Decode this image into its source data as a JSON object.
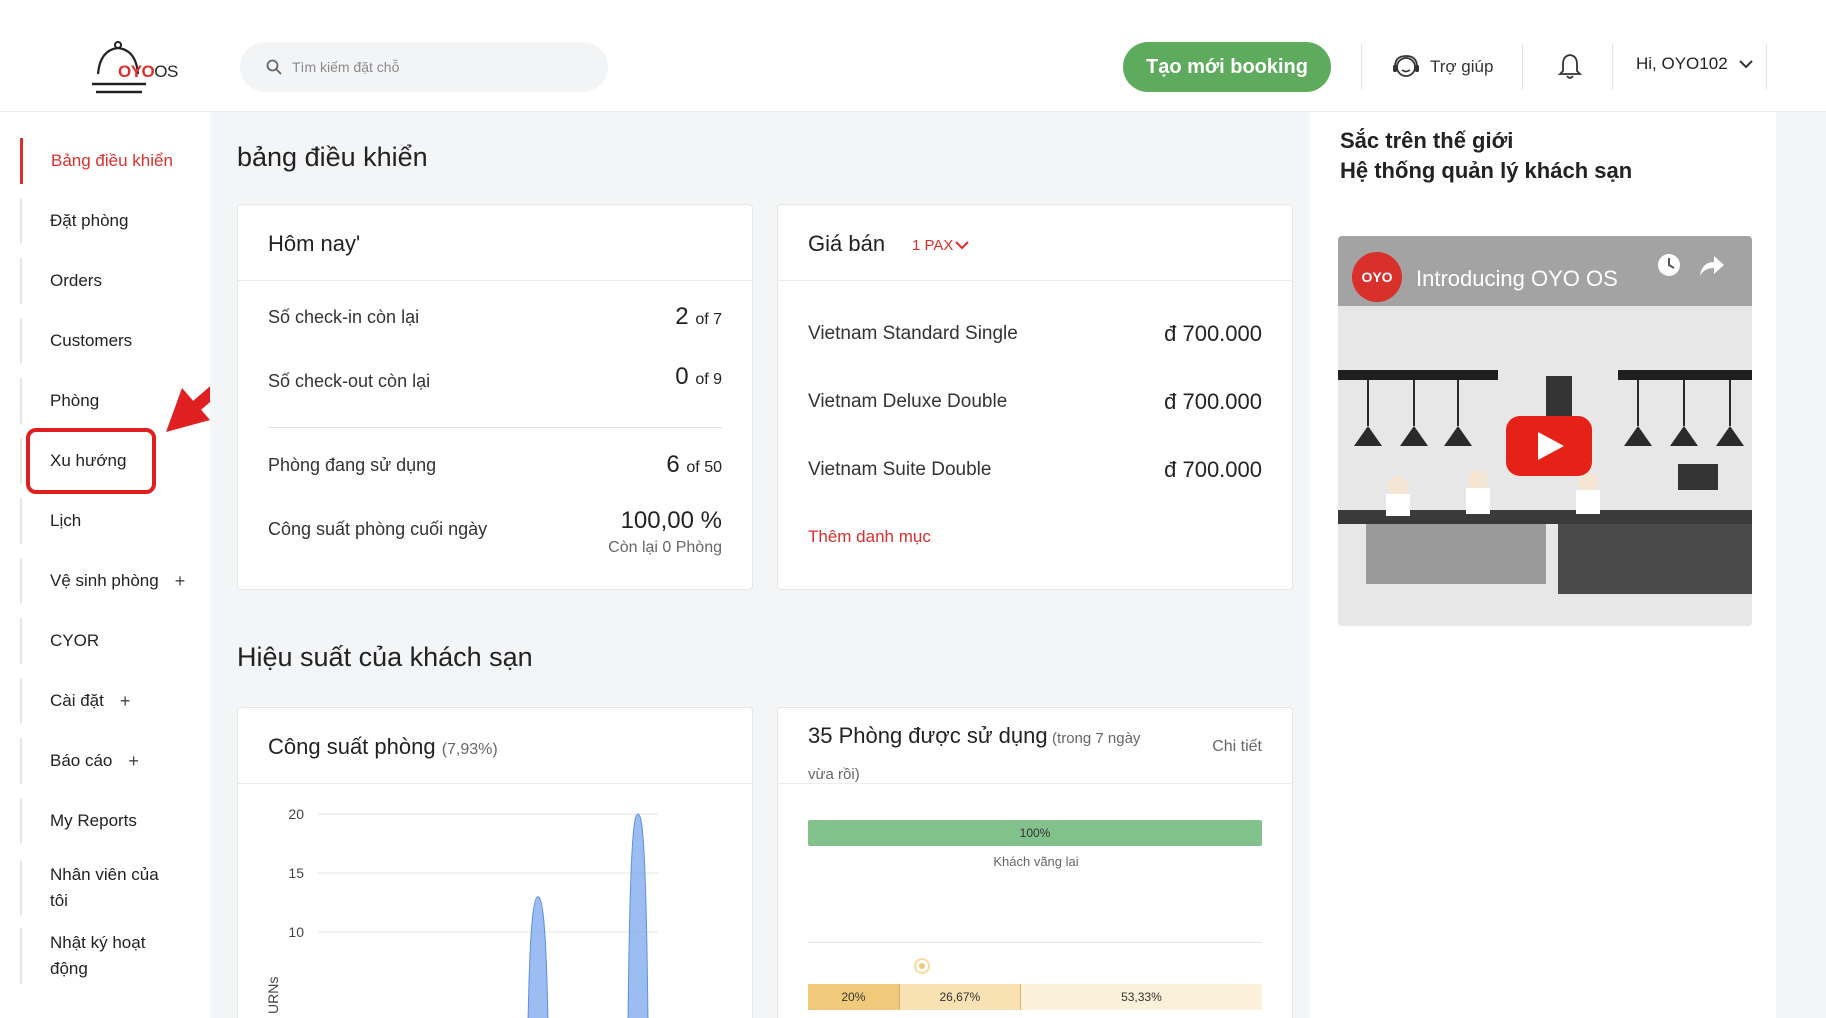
{
  "header": {
    "logo_brand": "OYO",
    "logo_suffix": "OS",
    "search_placeholder": "Tìm kiếm đặt chỗ",
    "new_booking_label": "Tạo mới booking",
    "help_label": "Trợ giúp",
    "user_label": "Hi, OYO102"
  },
  "sidebar": {
    "items": [
      {
        "label": "Bảng điều khiển"
      },
      {
        "label": "Đặt phòng"
      },
      {
        "label": "Orders"
      },
      {
        "label": "Customers"
      },
      {
        "label": "Phòng"
      },
      {
        "label": "Xu hướng"
      },
      {
        "label": "Lịch"
      },
      {
        "label": "Vệ sinh phòng",
        "plus": "+"
      },
      {
        "label": "CYOR"
      },
      {
        "label": "Cài đặt",
        "plus": "+"
      },
      {
        "label": "Báo cáo",
        "plus": "+"
      },
      {
        "label": "My Reports"
      },
      {
        "label": "Nhân viên của tôi"
      },
      {
        "label": "Nhật ký hoạt động"
      }
    ]
  },
  "main": {
    "dashboard_title": "bảng điều khiển",
    "today": {
      "title": "Hôm nay'",
      "checkin_label": "Số check-in còn lại",
      "checkin_value": "2",
      "checkin_total": "of 7",
      "checkout_label": "Số check-out còn lại",
      "checkout_value": "0",
      "checkout_total": "of 9",
      "rooms_label": "Phòng đang sử dụng",
      "rooms_value": "6",
      "rooms_total": "of 50",
      "capacity_label": "Công suất phòng cuối ngày",
      "capacity_value": "100,00 %",
      "capacity_sub": "Còn lại 0 Phòng"
    },
    "prices": {
      "title": "Giá bán",
      "pax": "1 PAX",
      "items": [
        {
          "name": "Vietnam Standard Single",
          "price": "đ 700.000"
        },
        {
          "name": "Vietnam Deluxe Double",
          "price": "đ 700.000"
        },
        {
          "name": "Vietnam Suite Double",
          "price": "đ 700.000"
        }
      ],
      "add_category": "Thêm danh mục"
    },
    "performance_title": "Hiệu suất của khách sạn",
    "capacity_card": {
      "title": "Công suất phòng",
      "subtitle": "(7,93%)",
      "ylabel": "URNs"
    },
    "rooms_used_card": {
      "title": "35 Phòng được sử dụng",
      "subtitle_1": "(trong 7 ngày",
      "subtitle_2": "vừa rồi)",
      "detail_link": "Chi tiết",
      "walk_in_pct": "100%",
      "walk_in_label": "Khách vãng lai",
      "bottom_bar": [
        {
          "label": "20%",
          "fraction": 0.2,
          "color": "#f0ca7a"
        },
        {
          "label": "26,67%",
          "fraction": 0.2667,
          "color": "#f8e2b3"
        },
        {
          "label": "53,33%",
          "fraction": 0.5333,
          "color": "#fbf0d9"
        }
      ]
    }
  },
  "chart_data": {
    "type": "area",
    "yticks": [
      "20",
      "15",
      "10"
    ],
    "ylim": [
      0,
      21
    ],
    "series": [
      {
        "values": [
          0,
          0,
          0,
          0,
          0,
          0,
          13,
          0,
          0,
          20
        ]
      }
    ],
    "color": "#7aa7ee"
  },
  "right_panel": {
    "line1": "Sắc trên thế giới",
    "line2": "Hệ thống quản lý khách sạn",
    "video_logo": "OYO",
    "video_title": "Introducing OYO OS"
  }
}
